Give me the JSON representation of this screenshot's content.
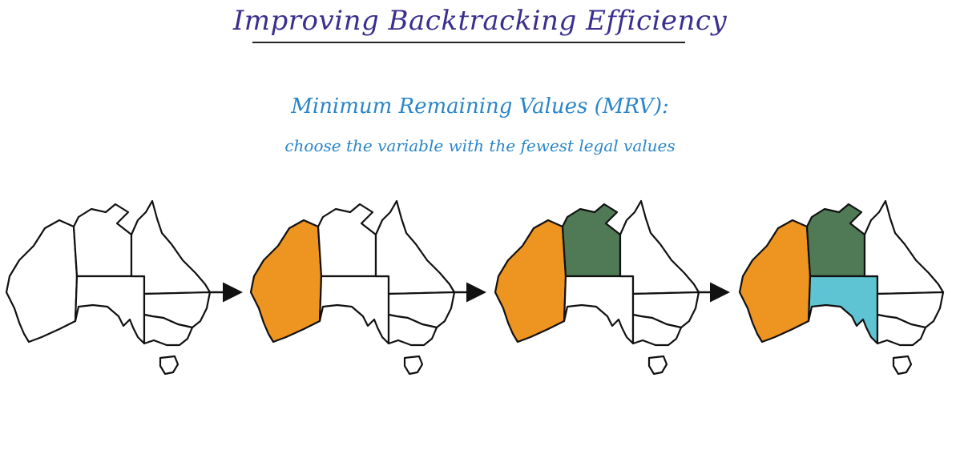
{
  "header": {
    "title": "Improving Backtracking Efficiency"
  },
  "heuristic": {
    "name": "Minimum Remaining Values (MRV):",
    "description": "choose the variable with the fewest legal values"
  },
  "colors": {
    "orange": "#ee9420",
    "green": "#4f7a55",
    "cyan": "#5ec3d2",
    "empty": "#ffffff",
    "arrow": "#111111"
  },
  "maps": [
    {
      "step": 1,
      "WA": "empty",
      "NT": "empty",
      "SA": "empty",
      "Q": "empty",
      "NSW": "empty",
      "V": "empty",
      "T": "empty"
    },
    {
      "step": 2,
      "WA": "orange",
      "NT": "empty",
      "SA": "empty",
      "Q": "empty",
      "NSW": "empty",
      "V": "empty",
      "T": "empty"
    },
    {
      "step": 3,
      "WA": "orange",
      "NT": "green",
      "SA": "empty",
      "Q": "empty",
      "NSW": "empty",
      "V": "empty",
      "T": "empty"
    },
    {
      "step": 4,
      "WA": "orange",
      "NT": "green",
      "SA": "cyan",
      "Q": "empty",
      "NSW": "empty",
      "V": "empty",
      "T": "empty"
    }
  ]
}
